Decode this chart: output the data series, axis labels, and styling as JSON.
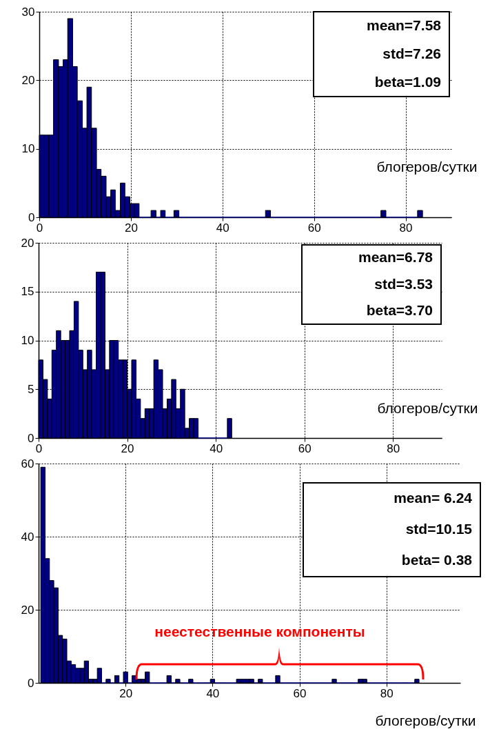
{
  "chart_data": [
    {
      "type": "histogram",
      "xlabel": "блогеров/сутки",
      "color": "#000080",
      "grid": true,
      "xlim": [
        0,
        90
      ],
      "ylim": [
        0,
        30
      ],
      "xticks": [
        0,
        20,
        40,
        60,
        80
      ],
      "yticks": [
        0,
        10,
        20,
        30
      ],
      "bins": [
        0,
        1,
        2.1,
        3.1,
        4.2,
        5.2,
        6.2,
        7.3,
        8.3,
        9.4,
        10.4,
        11.4,
        12.5,
        13.5,
        14.6,
        15.6,
        16.6,
        17.7,
        18.7,
        19.8,
        20.8,
        21.8,
        24.4,
        25.5,
        26.5,
        27.5,
        29.4,
        30.5,
        49.4,
        50.5,
        74.6,
        75.7,
        82.6,
        83.7
      ],
      "values": [
        12,
        12,
        12,
        23,
        22,
        23,
        29,
        22,
        17,
        13,
        19,
        13,
        7,
        6,
        3,
        4,
        1,
        5,
        3,
        2,
        2,
        0,
        1,
        0,
        1,
        0,
        1,
        0,
        1,
        0,
        1,
        0,
        1
      ],
      "annotations": [
        "mean=7.58",
        "std=7.26",
        "beta=1.09"
      ]
    },
    {
      "type": "histogram",
      "xlabel": "блогеров/сутки",
      "color": "#000080",
      "grid": true,
      "xlim": [
        0,
        91
      ],
      "ylim": [
        0,
        20
      ],
      "xticks": [
        0,
        20,
        40,
        60,
        80
      ],
      "yticks": [
        0,
        5,
        10,
        15,
        20
      ],
      "bins": [
        0,
        1,
        2,
        3,
        4,
        5,
        6,
        7,
        8,
        9,
        10,
        11,
        12,
        13,
        14,
        15,
        16,
        17,
        18,
        19,
        20,
        21,
        22,
        23,
        24,
        25,
        26,
        27,
        28,
        29,
        30,
        31,
        32,
        33,
        34,
        35,
        36,
        42.6,
        43.6
      ],
      "values": [
        8,
        6,
        4,
        9,
        11,
        10,
        10,
        11,
        14,
        9,
        7,
        9,
        7,
        17,
        17,
        7,
        10,
        10,
        8,
        8,
        5,
        8,
        4,
        2,
        3,
        3,
        8,
        7,
        3,
        4,
        6,
        3,
        5,
        1,
        2,
        2,
        0,
        2
      ],
      "annotations": [
        "mean=6.78",
        "std=3.53",
        "beta=3.70"
      ]
    },
    {
      "type": "histogram",
      "xlabel": "блогеров/сутки",
      "color": "#000080",
      "grid": true,
      "xlim": [
        0,
        97
      ],
      "ylim": [
        0,
        60
      ],
      "xticks": [
        20,
        40,
        60,
        80
      ],
      "yticks": [
        0,
        20,
        40,
        60
      ],
      "bins": [
        0.5,
        1.5,
        2.5,
        3.5,
        4.5,
        5.5,
        6.5,
        7.5,
        8.5,
        9.5,
        10.5,
        11.5,
        12.5,
        13.5,
        14.5,
        15.5,
        16.5,
        17.5,
        18.5,
        19.5,
        20.5,
        21.5,
        22.5,
        23.5,
        24.5,
        25.5,
        26.5,
        27.5,
        28.5,
        29.5,
        30.5,
        31.5,
        32.5,
        33.5,
        34.5,
        35.5,
        36.5,
        37.5,
        38.5,
        39.5,
        40.5,
        41.5,
        42.5,
        43.5,
        44.5,
        45.5,
        46.5,
        47.5,
        48.5,
        49.5,
        50.5,
        51.5,
        52.5,
        53.5,
        54.5,
        55.5,
        56.5,
        57.5,
        58.5,
        59.5,
        60.5,
        61.5,
        62.5,
        63.5,
        64.5,
        65.5,
        66.5,
        67.5,
        68.5,
        69.5,
        70.5,
        71.5,
        72.5,
        73.5,
        74.5,
        75.5,
        76.5,
        77.5,
        78.5,
        79.5,
        80.5,
        81.5,
        82.5,
        83.5,
        84.5,
        85.5,
        86.5,
        87.5
      ],
      "values": [
        59,
        34,
        28,
        26,
        13,
        12,
        6,
        5,
        4,
        4,
        6,
        1,
        1,
        4,
        0,
        1,
        0,
        2,
        0,
        3,
        0,
        2,
        1,
        1,
        3,
        0,
        0,
        0,
        0,
        2,
        0,
        1,
        0,
        0,
        1,
        0,
        0,
        0,
        0,
        1,
        0,
        0,
        0,
        0,
        0,
        1,
        1,
        1,
        1,
        0,
        1,
        0,
        0,
        0,
        2,
        0,
        0,
        0,
        0,
        0,
        0,
        0,
        0,
        0,
        0,
        0,
        0,
        1,
        0,
        0,
        0,
        0,
        0,
        1,
        1,
        0,
        0,
        0,
        0,
        0,
        0,
        0,
        0,
        0,
        0,
        0,
        1
      ],
      "annotations": [
        "mean=  6.24",
        "std=10.15",
        "beta=  0.38",
        "неестественные компоненты"
      ]
    }
  ]
}
